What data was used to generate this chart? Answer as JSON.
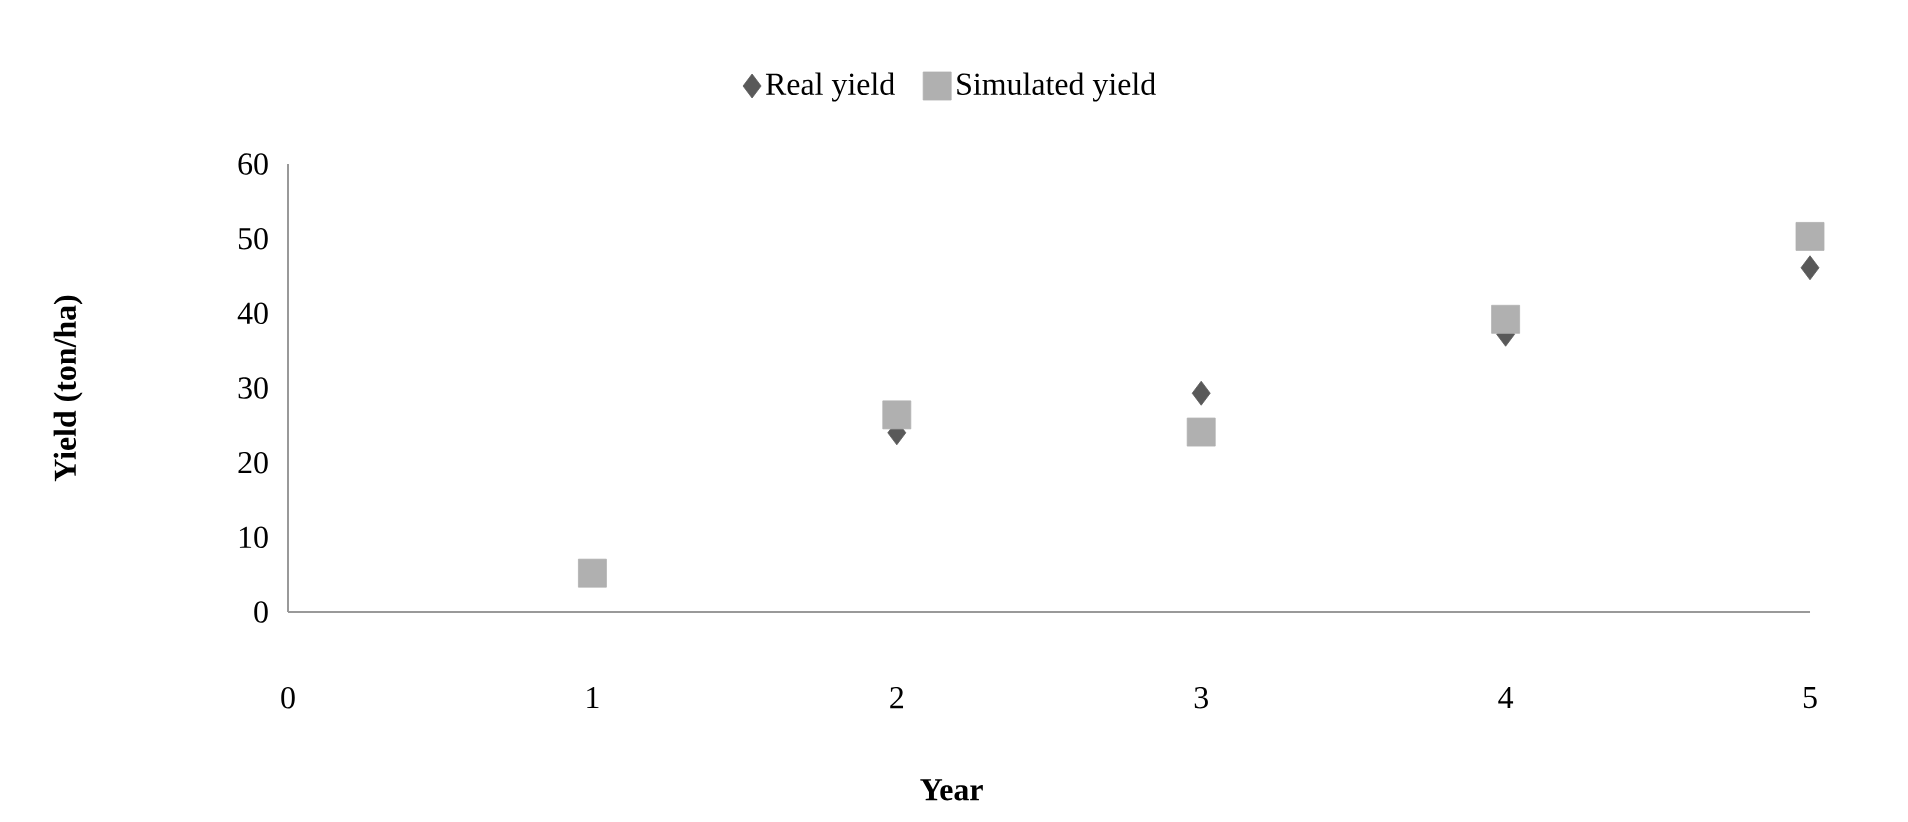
{
  "chart_data": {
    "type": "scatter",
    "xlabel": "Year",
    "ylabel": "Yield (ton/ha)",
    "x": [
      1,
      2,
      3,
      4,
      5
    ],
    "xlim": [
      0,
      5
    ],
    "xticks": [
      0,
      1,
      2,
      3,
      4,
      5
    ],
    "ylim": [
      0,
      60
    ],
    "yticks": [
      0,
      10,
      20,
      30,
      40,
      50,
      60
    ],
    "legend": "top",
    "series": [
      {
        "name": "Real yield",
        "color": "#595959",
        "marker": "diamond",
        "values": [
          null,
          24,
          29.3,
          37.2,
          46.1
        ]
      },
      {
        "name": "Simulated yield",
        "color": "#b0b0b0",
        "marker": "square",
        "values": [
          5.2,
          26.4,
          24.1,
          39.2,
          50.3
        ]
      }
    ]
  }
}
